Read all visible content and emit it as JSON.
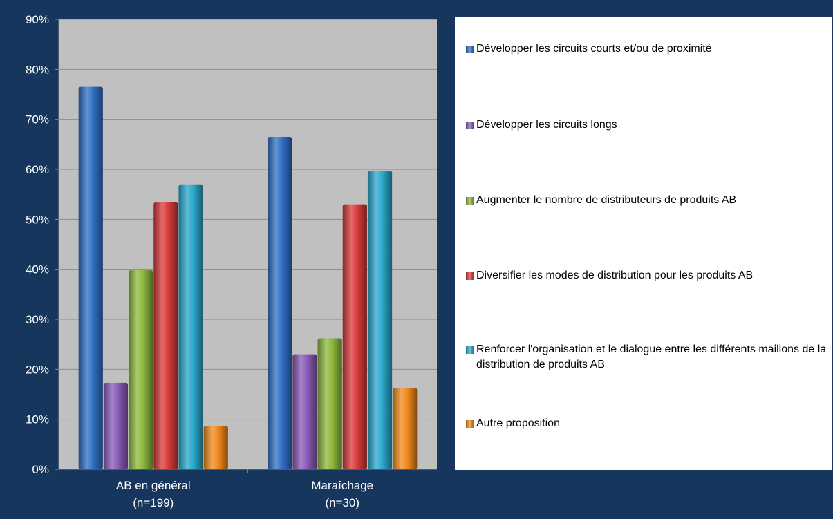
{
  "chart_data": {
    "type": "bar",
    "title": "",
    "xlabel": "",
    "ylabel": "",
    "ylim": [
      0,
      90
    ],
    "yticks": [
      0,
      10,
      20,
      30,
      40,
      50,
      60,
      70,
      80,
      90
    ],
    "ytick_suffix": "%",
    "grid": true,
    "legend_position": "right",
    "categories": [
      [
        "AB en général",
        "(n=199)"
      ],
      [
        "Maraîchage",
        "(n=30)"
      ]
    ],
    "series": [
      {
        "name": "Développer les circuits courts et/ou de proximité",
        "color": "#2f6fc4",
        "values": [
          76.5,
          66.5
        ]
      },
      {
        "name": "Développer les circuits longs",
        "color": "#8a5ab8",
        "values": [
          17.3,
          23.0
        ]
      },
      {
        "name": "Augmenter le nombre de distributeurs de produits AB",
        "color": "#8db83c",
        "values": [
          39.8,
          26.2
        ]
      },
      {
        "name": "Diversifier les modes de distribution pour les produits AB",
        "color": "#d93a3a",
        "values": [
          53.4,
          53.0
        ]
      },
      {
        "name": "Renforcer l'organisation et le dialogue entre les différents maillons de la distribution de produits AB",
        "color": "#2aa8cc",
        "values": [
          57.0,
          59.7
        ]
      },
      {
        "name": "Autre proposition",
        "color": "#f08a1c",
        "values": [
          8.7,
          16.3
        ]
      }
    ]
  },
  "colors": {
    "background": "#17365d",
    "plot_area": "#c0c0c0",
    "gridline": "#8c8c8c",
    "legend_bg": "#ffffff"
  }
}
